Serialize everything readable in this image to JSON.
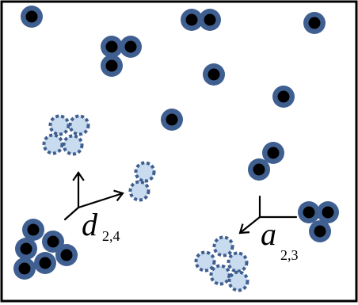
{
  "colors": {
    "frame": "#000000",
    "particle_ring": "#3f5f91",
    "particle_core": "#000000",
    "ghost_fill": "#c9dcef",
    "ghost_stroke": "#3f5f91",
    "arrow": "#000000"
  },
  "labels": {
    "dissociation_symbol": "d",
    "dissociation_subscript": "2,4",
    "association_symbol": "a",
    "association_subscript": "2,3"
  },
  "legend": {}
}
